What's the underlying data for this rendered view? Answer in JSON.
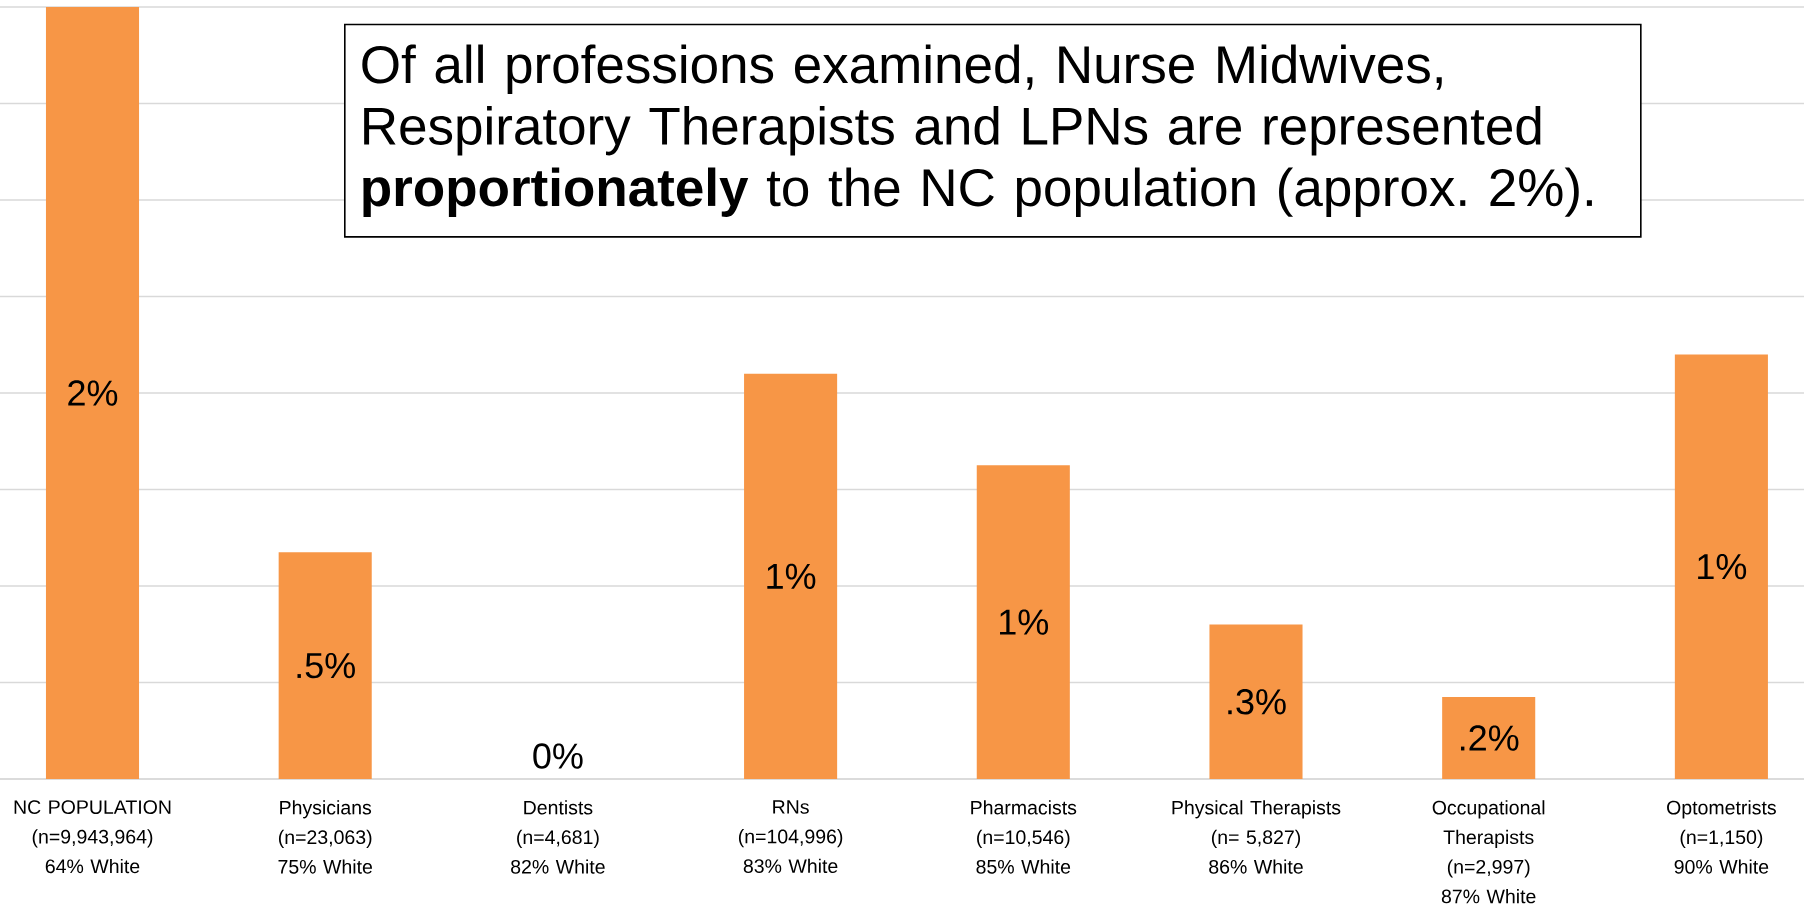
{
  "chart_data": {
    "type": "bar",
    "color": "#f79646",
    "grid": "y",
    "tick_labels": "x",
    "categories": [
      "NC POPULATION\n(n=9,943,964)\n64% White",
      "Physicians\n(n=23,063)\n75% White",
      "Dentists\n(n=4,681)\n82% White",
      "RNs\n(n=104,996)\n83% White",
      "Pharmacists\n(n=10,546)\n85% White",
      "Physical Therapists\n(n= 5,827)\n86% White",
      "Occupational\nTherapists\n(n=2,997)\n87% White",
      "Optometrists\n(n=1,150)\n90% White"
    ],
    "values": [
      1.6,
      0.47,
      0,
      0.84,
      0.65,
      0.32,
      0.17,
      0.88
    ],
    "value_labels": [
      "2%",
      ".5%",
      "0%",
      "1%",
      "1%",
      ".3%",
      ".2%",
      "1%"
    ],
    "ylim": [
      0,
      1.6
    ],
    "yticks": [
      {
        "value": 0,
        "label": null
      },
      {
        "value": 0.2,
        "label": null
      },
      {
        "value": 0.4,
        "label": null
      },
      {
        "value": 0.6,
        "label": null
      },
      {
        "value": 0.8,
        "label": null
      },
      {
        "value": 1.0,
        "label": null
      },
      {
        "value": 1.2,
        "label": null
      },
      {
        "value": 1.4,
        "label": null
      },
      {
        "value": 1.6,
        "label": null
      }
    ],
    "annotations": [
      "Of all professions examined, Nurse Midwives,\nRespiratory Therapists and LPNs are represented\n**proportionately** to the NC population (approx. 2%)."
    ]
  }
}
